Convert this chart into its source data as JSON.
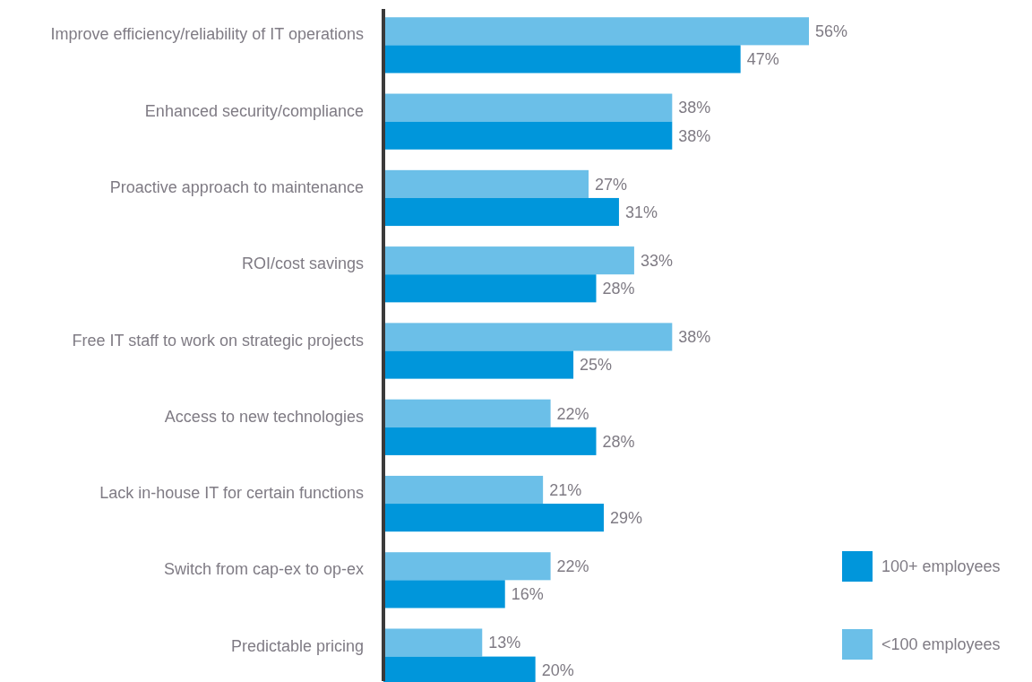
{
  "chart_data": {
    "type": "bar",
    "orientation": "horizontal",
    "categories": [
      "Improve efficiency/reliability of IT operations",
      "Enhanced security/compliance",
      "Proactive approach to maintenance",
      "ROI/cost savings",
      "Free IT staff to work on strategic projects",
      "Access to new technologies",
      "Lack in-house IT for certain functions",
      "Switch from cap-ex to op-ex",
      "Predictable pricing"
    ],
    "series": [
      {
        "name": "<100 employees",
        "color": "#6bbfe8",
        "values": [
          56,
          38,
          27,
          33,
          38,
          22,
          21,
          22,
          13
        ],
        "value_labels": [
          "56%",
          "38%",
          "27%",
          "33%",
          "38%",
          "22%",
          "21%",
          "22%",
          "13%"
        ]
      },
      {
        "name": "100+ employees",
        "color": "#0096db",
        "values": [
          47,
          38,
          31,
          28,
          25,
          28,
          29,
          16,
          20
        ],
        "value_labels": [
          "47%",
          "38%",
          "31%",
          "28%",
          "25%",
          "28%",
          "29%",
          "16%",
          "20%"
        ]
      }
    ],
    "legend": "bottom right"
  }
}
